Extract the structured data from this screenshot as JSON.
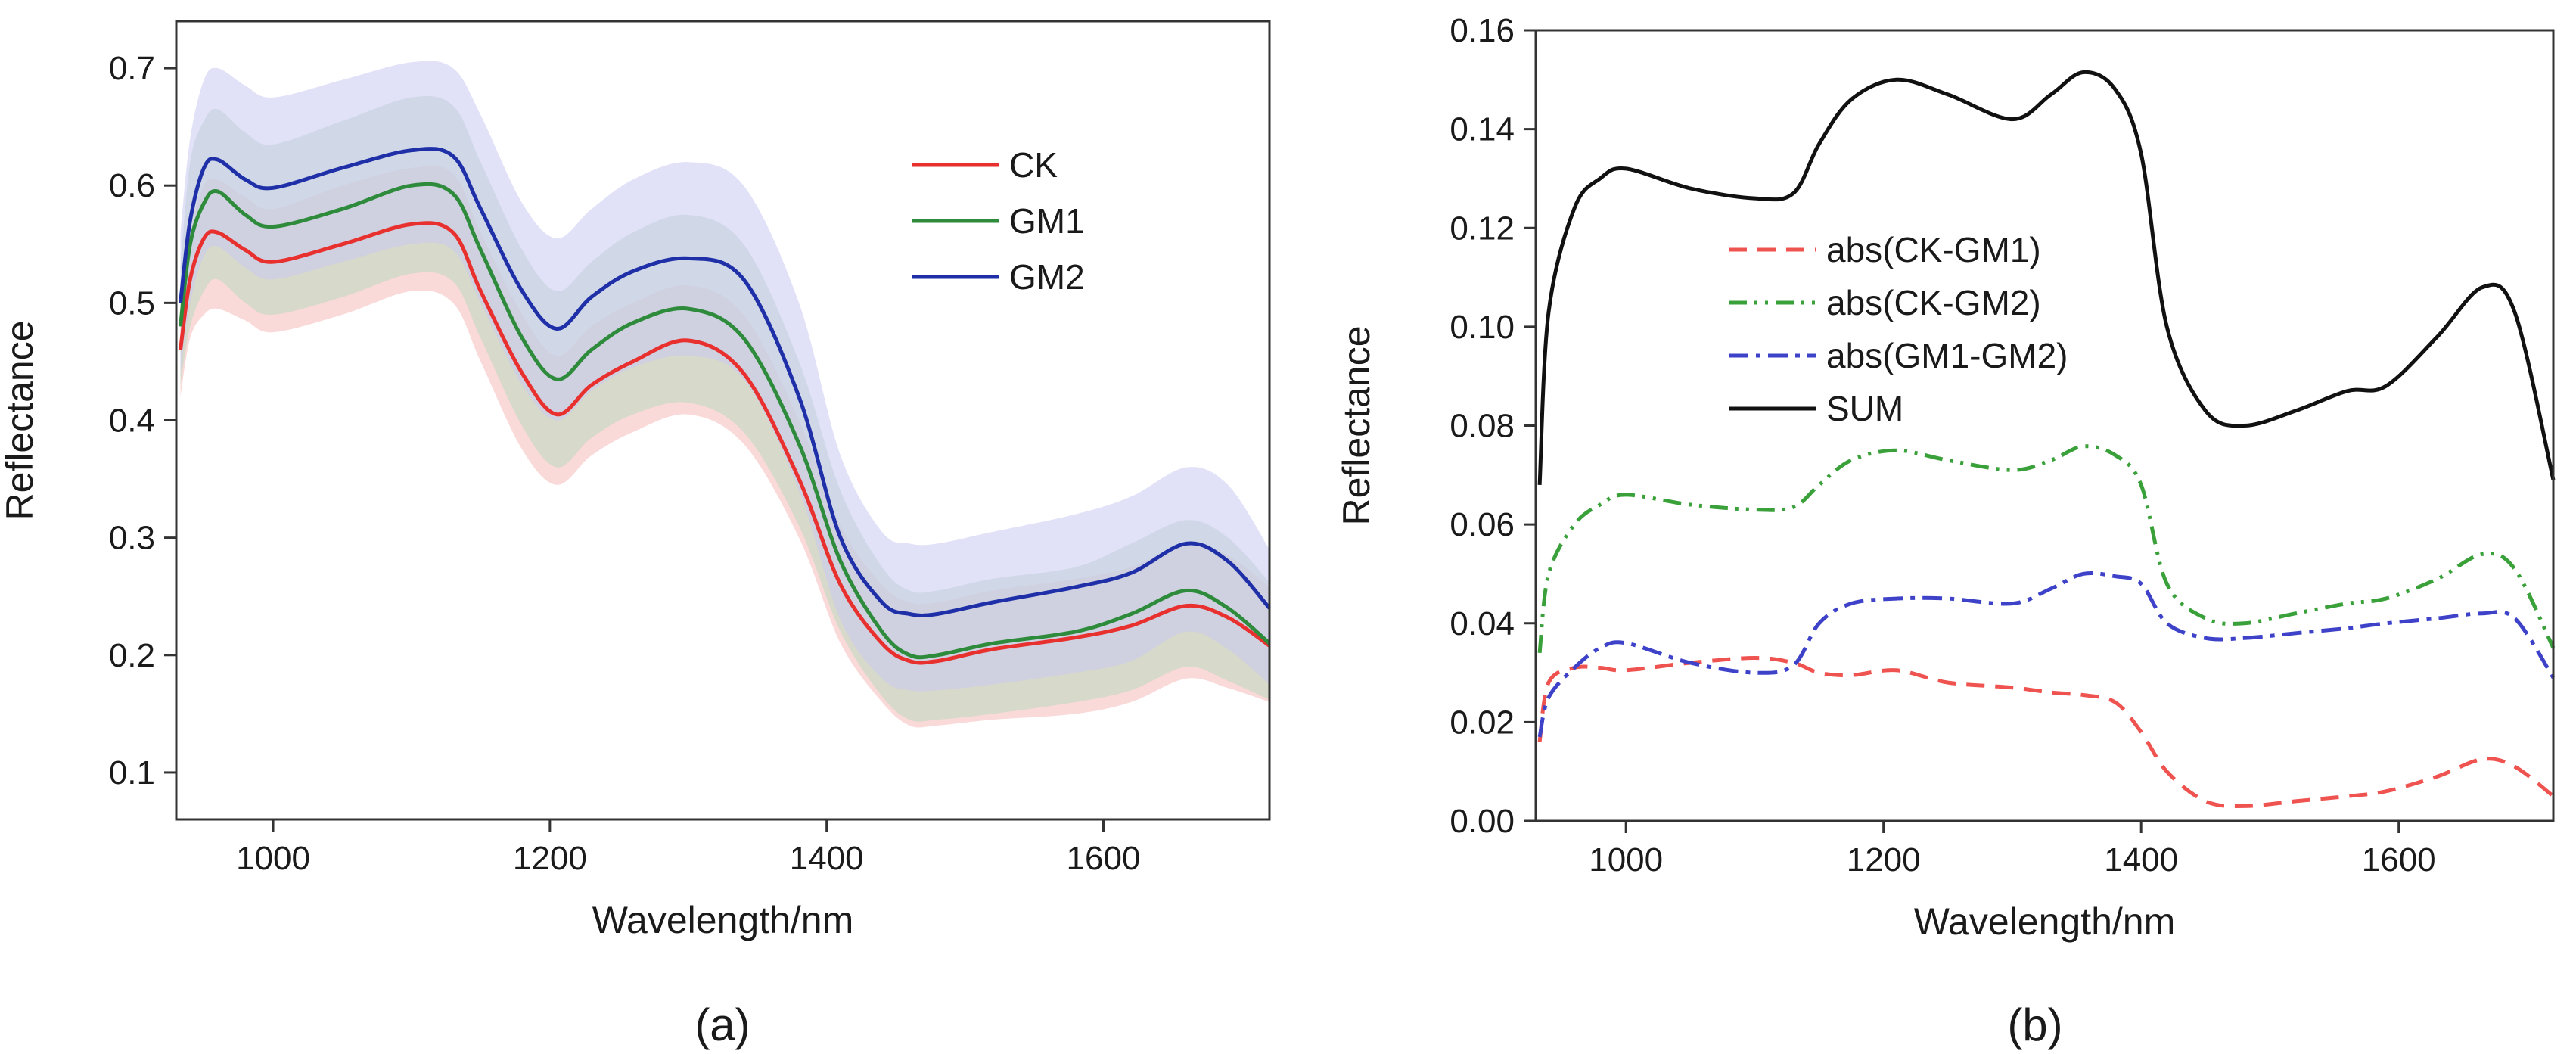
{
  "chart_data": [
    {
      "type": "line",
      "panel_label": "(a)",
      "xlabel": "Wavelength/nm",
      "ylabel": "Reflectance",
      "xlim": [
        930,
        1720
      ],
      "ylim": [
        0.06,
        0.74
      ],
      "xticks": [
        1000,
        1200,
        1400,
        1600
      ],
      "yticks": [
        0.1,
        0.2,
        0.3,
        0.4,
        0.5,
        0.6,
        0.7
      ],
      "ytick_labels": [
        "0.1",
        "0.2",
        "0.3",
        "0.4",
        "0.5",
        "0.6",
        "0.7"
      ],
      "legend_position": "top-right",
      "x": [
        933,
        940,
        950,
        960,
        980,
        1000,
        1050,
        1100,
        1130,
        1150,
        1180,
        1205,
        1230,
        1260,
        1300,
        1340,
        1380,
        1410,
        1440,
        1460,
        1480,
        1520,
        1580,
        1620,
        1660,
        1690,
        1720
      ],
      "series": [
        {
          "name": "CK",
          "color": "#e8302e",
          "values": [
            0.46,
            0.52,
            0.555,
            0.56,
            0.545,
            0.535,
            0.55,
            0.567,
            0.56,
            0.51,
            0.44,
            0.405,
            0.43,
            0.45,
            0.468,
            0.44,
            0.35,
            0.26,
            0.21,
            0.195,
            0.195,
            0.205,
            0.215,
            0.225,
            0.242,
            0.232,
            0.208
          ],
          "band_lower": [
            0.42,
            0.47,
            0.49,
            0.495,
            0.485,
            0.475,
            0.49,
            0.51,
            0.5,
            0.45,
            0.375,
            0.345,
            0.37,
            0.39,
            0.405,
            0.38,
            0.3,
            0.21,
            0.16,
            0.14,
            0.14,
            0.145,
            0.15,
            0.16,
            0.18,
            0.172,
            0.16
          ],
          "band_upper": [
            0.5,
            0.56,
            0.6,
            0.605,
            0.59,
            0.58,
            0.6,
            0.615,
            0.61,
            0.56,
            0.49,
            0.455,
            0.48,
            0.5,
            0.515,
            0.49,
            0.4,
            0.31,
            0.26,
            0.245,
            0.245,
            0.255,
            0.265,
            0.275,
            0.295,
            0.285,
            0.258
          ],
          "band_color": "#f6b9b9"
        },
        {
          "name": "GM1",
          "color": "#2e8b3c",
          "values": [
            0.48,
            0.55,
            0.585,
            0.595,
            0.575,
            0.565,
            0.58,
            0.6,
            0.593,
            0.545,
            0.47,
            0.435,
            0.46,
            0.483,
            0.495,
            0.47,
            0.38,
            0.28,
            0.22,
            0.2,
            0.2,
            0.21,
            0.22,
            0.235,
            0.255,
            0.24,
            0.21
          ],
          "band_lower": [
            0.43,
            0.48,
            0.51,
            0.52,
            0.5,
            0.49,
            0.505,
            0.525,
            0.518,
            0.47,
            0.395,
            0.36,
            0.385,
            0.405,
            0.415,
            0.39,
            0.31,
            0.22,
            0.165,
            0.145,
            0.145,
            0.15,
            0.16,
            0.17,
            0.19,
            0.178,
            0.162
          ],
          "band_upper": [
            0.53,
            0.62,
            0.655,
            0.665,
            0.645,
            0.635,
            0.655,
            0.675,
            0.668,
            0.62,
            0.545,
            0.51,
            0.535,
            0.56,
            0.575,
            0.55,
            0.45,
            0.34,
            0.275,
            0.255,
            0.255,
            0.265,
            0.275,
            0.295,
            0.315,
            0.3,
            0.262
          ],
          "band_color": "#b9d8bd"
        },
        {
          "name": "GM2",
          "color": "#1f2fa8",
          "values": [
            0.5,
            0.57,
            0.615,
            0.622,
            0.605,
            0.598,
            0.615,
            0.63,
            0.625,
            0.58,
            0.51,
            0.478,
            0.505,
            0.527,
            0.538,
            0.52,
            0.42,
            0.3,
            0.245,
            0.235,
            0.235,
            0.245,
            0.258,
            0.27,
            0.295,
            0.28,
            0.24
          ],
          "band_lower": [
            0.44,
            0.5,
            0.54,
            0.548,
            0.53,
            0.52,
            0.535,
            0.55,
            0.545,
            0.5,
            0.43,
            0.4,
            0.425,
            0.445,
            0.455,
            0.435,
            0.34,
            0.23,
            0.18,
            0.17,
            0.17,
            0.175,
            0.185,
            0.195,
            0.22,
            0.205,
            0.175
          ],
          "band_upper": [
            0.56,
            0.64,
            0.69,
            0.7,
            0.685,
            0.675,
            0.69,
            0.705,
            0.7,
            0.66,
            0.585,
            0.555,
            0.58,
            0.605,
            0.62,
            0.6,
            0.5,
            0.37,
            0.305,
            0.295,
            0.295,
            0.305,
            0.32,
            0.335,
            0.36,
            0.345,
            0.29
          ],
          "band_color": "#c9c9f2"
        }
      ]
    },
    {
      "type": "line",
      "panel_label": "(b)",
      "xlabel": "Wavelength/nm",
      "ylabel": "Reflectance",
      "xlim": [
        930,
        1720
      ],
      "ylim": [
        0.0,
        0.16
      ],
      "xticks": [
        1000,
        1200,
        1400,
        1600
      ],
      "yticks": [
        0.0,
        0.02,
        0.04,
        0.06,
        0.08,
        0.1,
        0.12,
        0.14,
        0.16
      ],
      "ytick_labels": [
        "0.00",
        "0.02",
        "0.04",
        "0.06",
        "0.08",
        "0.10",
        "0.12",
        "0.14",
        "0.16"
      ],
      "legend_position": "center-left",
      "x": [
        933,
        940,
        960,
        980,
        1000,
        1050,
        1100,
        1130,
        1150,
        1175,
        1210,
        1250,
        1300,
        1330,
        1355,
        1380,
        1400,
        1420,
        1450,
        1480,
        1520,
        1560,
        1590,
        1630,
        1665,
        1690,
        1720
      ],
      "series": [
        {
          "name": "abs(CK-GM1)",
          "color": "#ef5350",
          "dash": "24,14",
          "values": [
            0.016,
            0.028,
            0.031,
            0.031,
            0.0305,
            0.032,
            0.033,
            0.032,
            0.03,
            0.0295,
            0.0305,
            0.028,
            0.027,
            0.026,
            0.0255,
            0.024,
            0.018,
            0.01,
            0.004,
            0.003,
            0.004,
            0.005,
            0.006,
            0.009,
            0.0125,
            0.011,
            0.005
          ]
        },
        {
          "name": "abs(CK-GM2)",
          "color": "#3aa13a",
          "dash": "24,10,4,10,4,10",
          "values": [
            0.034,
            0.05,
            0.06,
            0.064,
            0.066,
            0.064,
            0.063,
            0.0635,
            0.068,
            0.073,
            0.075,
            0.073,
            0.071,
            0.073,
            0.0758,
            0.074,
            0.068,
            0.048,
            0.041,
            0.04,
            0.042,
            0.044,
            0.045,
            0.049,
            0.054,
            0.051,
            0.035
          ]
        },
        {
          "name": "abs(GM1-GM2)",
          "color": "#3d42c8",
          "dash": "26,10,6,10",
          "values": [
            0.017,
            0.025,
            0.031,
            0.035,
            0.036,
            0.032,
            0.03,
            0.0315,
            0.04,
            0.044,
            0.045,
            0.045,
            0.044,
            0.047,
            0.05,
            0.0495,
            0.048,
            0.04,
            0.037,
            0.037,
            0.038,
            0.039,
            0.04,
            0.041,
            0.042,
            0.041,
            0.029
          ]
        },
        {
          "name": "SUM",
          "color": "#111111",
          "dash": "",
          "values": [
            0.068,
            0.103,
            0.124,
            0.13,
            0.132,
            0.128,
            0.126,
            0.127,
            0.137,
            0.146,
            0.15,
            0.147,
            0.142,
            0.147,
            0.1515,
            0.148,
            0.135,
            0.1,
            0.083,
            0.08,
            0.083,
            0.087,
            0.088,
            0.098,
            0.108,
            0.103,
            0.069
          ]
        }
      ]
    }
  ]
}
